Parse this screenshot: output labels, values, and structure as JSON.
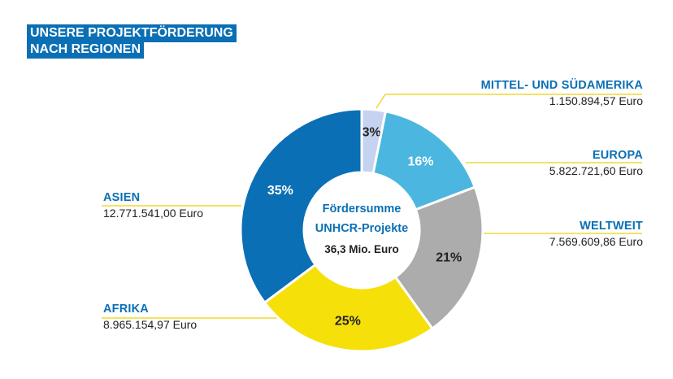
{
  "title": {
    "line1": "UNSERE PROJEKTFÖRDERUNG",
    "line2": "NACH REGIONEN"
  },
  "center": {
    "line1": "Fördersumme",
    "line2": "UNHCR-Projekte",
    "total": "36,3 Mio. Euro"
  },
  "chart_data": {
    "type": "pie",
    "donut": true,
    "title": "UNSERE PROJEKTFÖRDERUNG NACH REGIONEN",
    "categories": [
      "MITTEL- UND SÜDAMERIKA",
      "EUROPA",
      "WELTWEIT",
      "AFRIKA",
      "ASIEN"
    ],
    "values": [
      1150894.57,
      5822721.6,
      7569609.86,
      8965154.97,
      12771541.0
    ],
    "value_labels": [
      "1.150.894,57 Euro",
      "5.822.721,60 Euro",
      "7.569.609,86 Euro",
      "8.965.154,97 Euro",
      "12.771.541,00 Euro"
    ],
    "percent_labels": [
      "3%",
      "16%",
      "21%",
      "25%",
      "35%"
    ],
    "colors": [
      "#c5d3f0",
      "#4bb6df",
      "#acacac",
      "#f6e00a",
      "#0a6fb5"
    ],
    "percent_label_colors": [
      "#222222",
      "#ffffff",
      "#222222",
      "#222222",
      "#ffffff"
    ],
    "leader_color": "#f0d834"
  }
}
